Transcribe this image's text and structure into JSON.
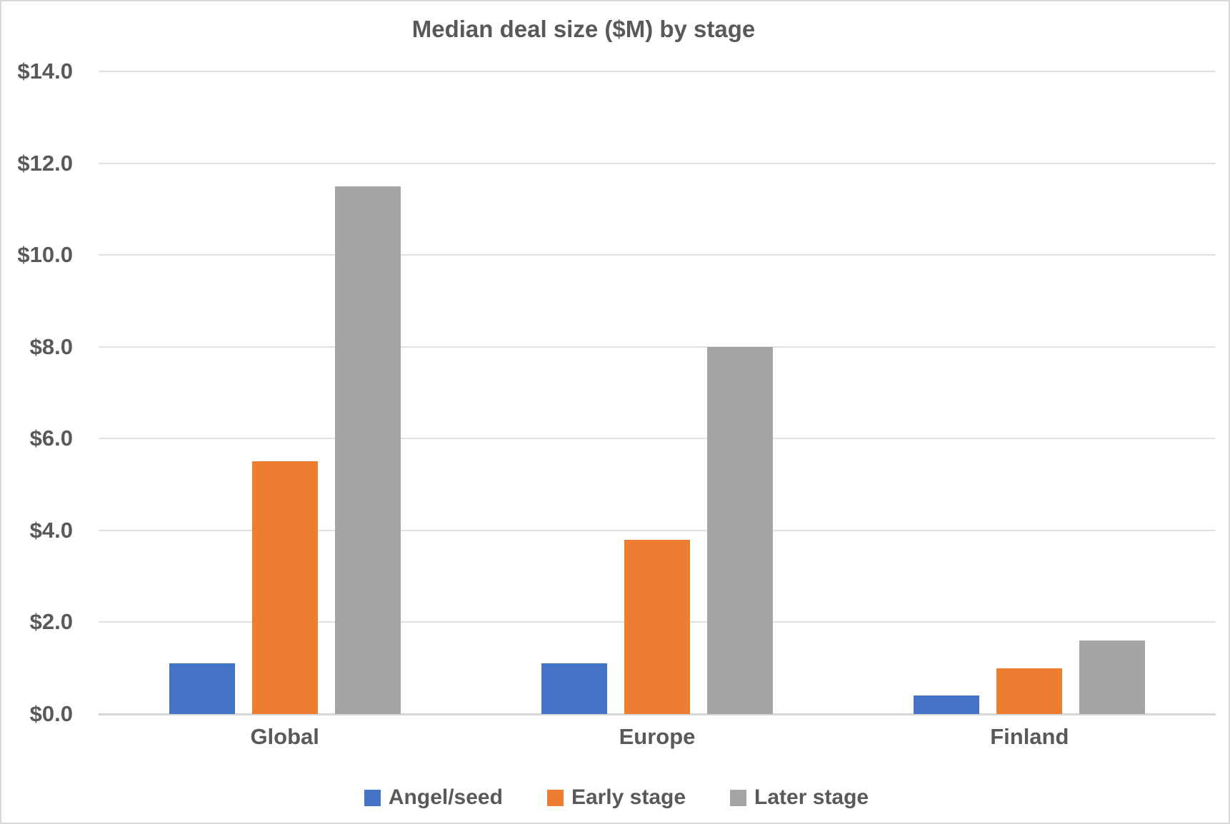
{
  "chart_data": {
    "type": "bar",
    "title": "Median deal size ($M) by stage",
    "categories": [
      "Global",
      "Europe",
      "Finland"
    ],
    "series": [
      {
        "name": "Angel/seed",
        "color": "#4472C4",
        "values": [
          1.1,
          1.1,
          0.4
        ]
      },
      {
        "name": "Early stage",
        "color": "#ED7D31",
        "values": [
          5.5,
          3.8,
          1.0
        ]
      },
      {
        "name": "Later stage",
        "color": "#A5A5A5",
        "values": [
          11.5,
          8.0,
          1.6
        ]
      }
    ],
    "ylabel": "",
    "xlabel": "",
    "ylim": [
      0,
      14
    ],
    "ytick_step": 2,
    "yticks": [
      "$0.0",
      "$2.0",
      "$4.0",
      "$6.0",
      "$8.0",
      "$10.0",
      "$12.0",
      "$14.0"
    ],
    "grid": true,
    "legend_position": "bottom"
  },
  "styles": {
    "text_color": "#595959",
    "gridline_color": "#E2E2E2",
    "axis_color": "#D6D6D6",
    "border_color": "#D9D9D9",
    "background": "#FFFFFF"
  }
}
